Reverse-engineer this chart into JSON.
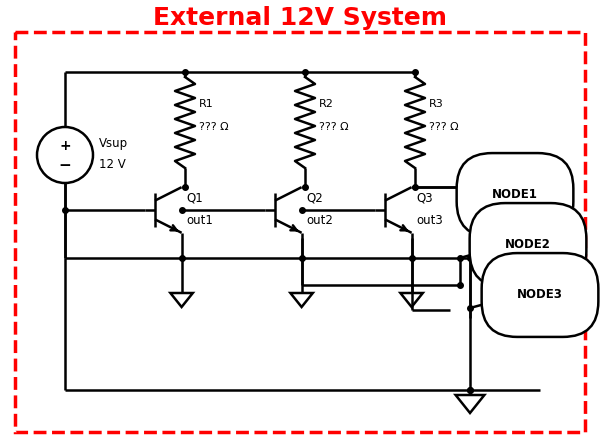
{
  "title": "External 12V System",
  "title_color": "#FF0000",
  "title_fontsize": 18,
  "bg_color": "#FFFFFF",
  "border_color": "#FF0000",
  "line_color": "#000000",
  "node_labels": [
    "NODE1",
    "NODE2",
    "NODE3"
  ],
  "resistor_labels": [
    [
      "R1",
      "??? Ω"
    ],
    [
      "R2",
      "??? Ω"
    ],
    [
      "R3",
      "??? Ω"
    ]
  ],
  "transistor_labels": [
    [
      "Q1",
      "out1"
    ],
    [
      "Q2",
      "out2"
    ],
    [
      "Q3",
      "out3"
    ]
  ],
  "vsup_label": [
    "Vsup",
    "12 V"
  ]
}
